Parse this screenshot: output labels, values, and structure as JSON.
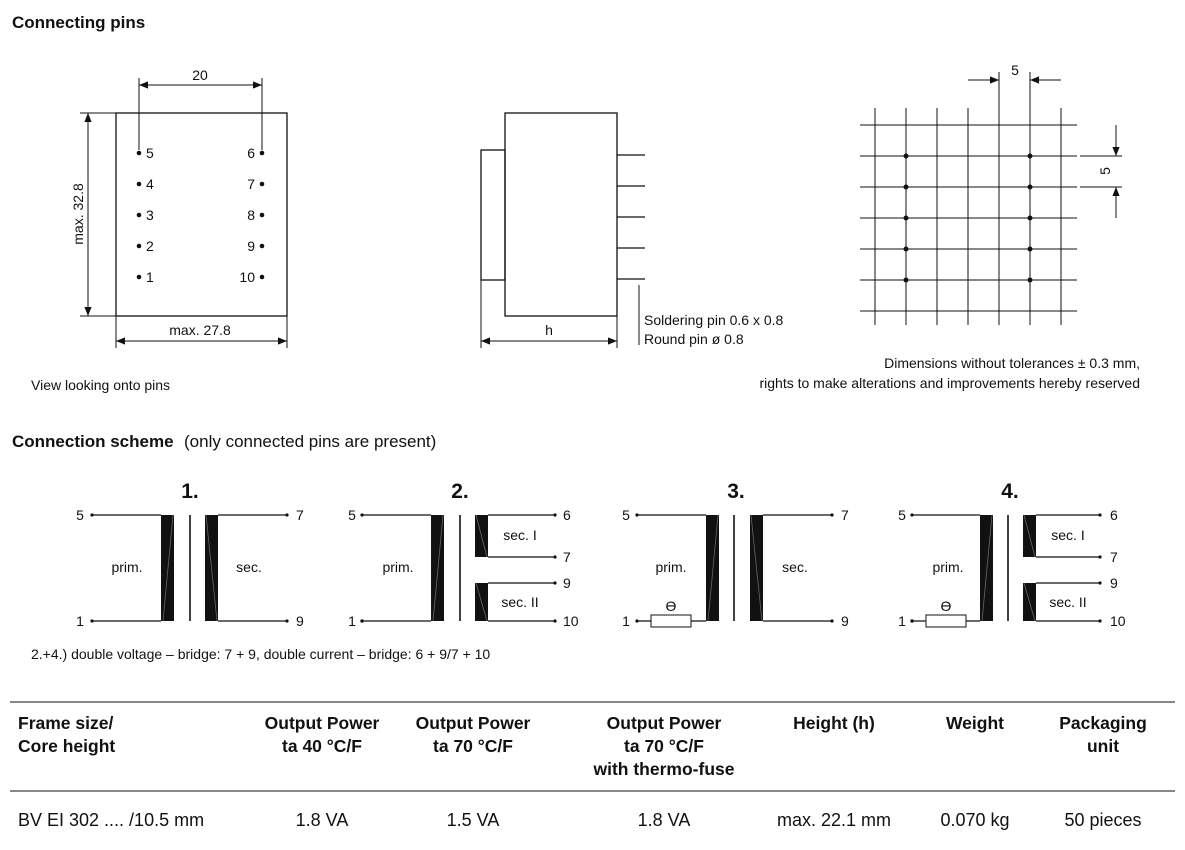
{
  "sections": {
    "connecting_pins_title": "Connecting pins",
    "connection_scheme_title": "Connection scheme",
    "connection_scheme_note": "(only connected pins are present)"
  },
  "pin_view": {
    "dim_pitch": "20",
    "dim_height": "max. 32.8",
    "dim_width": "max. 27.8",
    "left_pins": [
      "5",
      "4",
      "3",
      "2",
      "1"
    ],
    "right_pins": [
      "6",
      "7",
      "8",
      "9",
      "10"
    ],
    "caption": "View looking onto pins"
  },
  "side_view": {
    "dim_h": "h",
    "pin_note_1": "Soldering pin 0.6 x 0.8",
    "pin_note_2": "Round pin ø 0.8"
  },
  "grid_view": {
    "dim_x": "5",
    "dim_y": "5",
    "note_1": "Dimensions without tolerances ± 0.3 mm,",
    "note_2": "rights to make alterations and improvements hereby reserved"
  },
  "schemes": [
    {
      "number": "1.",
      "prim": "prim.",
      "sec": "sec.",
      "pins_left": [
        "5",
        "1"
      ],
      "pins_right": [
        "7",
        "9"
      ]
    },
    {
      "number": "2.",
      "prim": "prim.",
      "sec1": "sec. I",
      "sec2": "sec. II",
      "pins_left": [
        "5",
        "1"
      ],
      "pins_right": [
        "6",
        "7",
        "9",
        "10"
      ]
    },
    {
      "number": "3.",
      "prim": "prim.",
      "sec": "sec.",
      "pins_left": [
        "5",
        "1"
      ],
      "pins_right": [
        "7",
        "9"
      ],
      "fuse_symbol": "ϴ"
    },
    {
      "number": "4.",
      "prim": "prim.",
      "sec1": "sec. I",
      "sec2": "sec. II",
      "pins_left": [
        "5",
        "1"
      ],
      "pins_right": [
        "6",
        "7",
        "9",
        "10"
      ],
      "fuse_symbol": "ϴ"
    }
  ],
  "scheme_footnote": "2.+4.) double voltage – bridge: 7 + 9, double current – bridge: 6 + 9/7 + 10",
  "table": {
    "headers": [
      [
        "Frame size/",
        "Core height"
      ],
      [
        "Output Power",
        "ta 40 °C/F"
      ],
      [
        "Output  Power",
        "ta 70 °C/F"
      ],
      [
        "Output  Power",
        "ta 70 °C/F",
        "with thermo-fuse"
      ],
      [
        "Height (h)"
      ],
      [
        "Weight"
      ],
      [
        "Packaging",
        "unit"
      ]
    ],
    "rows": [
      [
        "BV EI 302 .... /10.5 mm",
        "1.8 VA",
        "1.5 VA",
        "1.8 VA",
        "max. 22.1 mm",
        "0.070 kg",
        "50 pieces"
      ]
    ]
  }
}
